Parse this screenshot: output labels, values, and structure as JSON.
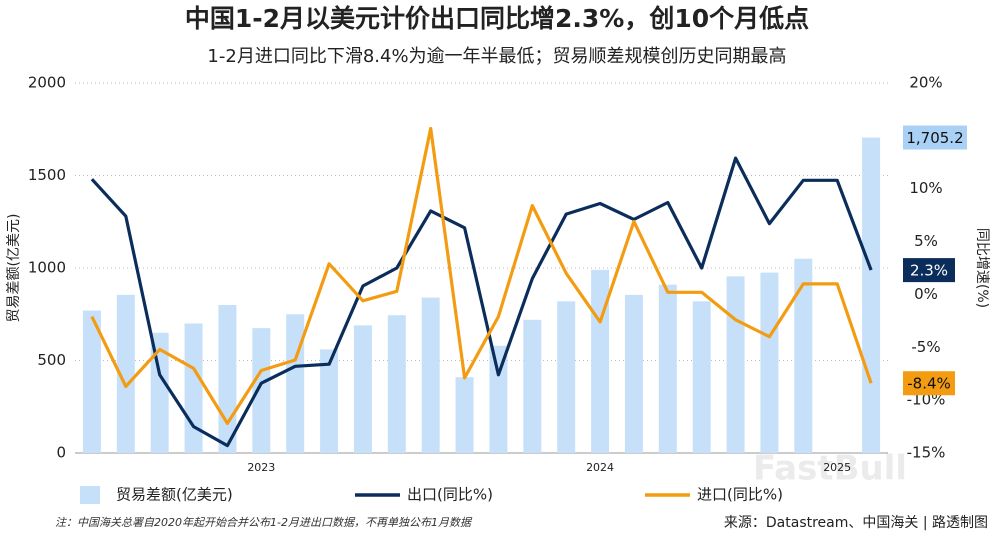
{
  "chart_data": {
    "type": "bar-line",
    "title": "中国1-2月以美元计价出口同比增2.3%，创10个月低点",
    "subtitle": "1-2月进口同比下滑8.4%为逾一年半最低；贸易顺差规模创历史同期最高",
    "y_label": "贸易差额(亿美元)",
    "y2_label": "同比增速(%)",
    "categories": [
      null,
      null,
      null,
      null,
      null,
      "2023",
      null,
      null,
      null,
      null,
      null,
      null,
      null,
      null,
      null,
      "2024",
      null,
      null,
      null,
      null,
      null,
      null,
      "2025",
      null
    ],
    "ylim": [
      0,
      2000
    ],
    "yticks": [
      0,
      500,
      1000,
      1500,
      2000
    ],
    "y2lim": [
      -15,
      20
    ],
    "y2ticks": [
      {
        "value": -15,
        "label": "-15%"
      },
      {
        "value": -10,
        "label": "-10%"
      },
      {
        "value": -5,
        "label": "-5%"
      },
      {
        "value": 0,
        "label": "0%"
      },
      {
        "value": 5,
        "label": "5%"
      },
      {
        "value": 10,
        "label": "10%"
      },
      {
        "value": 15,
        "label": "15%"
      },
      {
        "value": 20,
        "label": "20%"
      }
    ],
    "grid": true,
    "legend": "bottom",
    "series": [
      {
        "name": "贸易差额(亿美元)",
        "kind": "bar",
        "color": "#c6e0fa",
        "values": [
          770,
          855,
          650,
          700,
          800,
          675,
          750,
          560,
          690,
          745,
          840,
          410,
          580,
          720,
          820,
          990,
          855,
          910,
          820,
          955,
          975,
          1050,
          null,
          1705.2
        ],
        "value_labels": [
          null,
          null,
          null,
          null,
          null,
          null,
          null,
          null,
          null,
          null,
          null,
          null,
          null,
          null,
          null,
          null,
          null,
          null,
          null,
          null,
          null,
          null,
          null,
          "1,705.2"
        ]
      },
      {
        "name": "出口(同比%)",
        "kind": "line",
        "axis": "y2",
        "color": "#0b2d5b",
        "values": [
          10.9,
          7.4,
          -7.6,
          -12.5,
          -14.3,
          -8.4,
          -6.8,
          -6.6,
          0.8,
          2.5,
          7.9,
          6.3,
          -7.6,
          1.5,
          7.6,
          8.6,
          7.1,
          8.7,
          2.5,
          12.9,
          6.7,
          10.8,
          10.8,
          2.3
        ],
        "value_labels": [
          null,
          null,
          null,
          null,
          null,
          null,
          null,
          null,
          null,
          null,
          null,
          null,
          null,
          null,
          null,
          null,
          null,
          null,
          null,
          null,
          null,
          null,
          null,
          "2.3%"
        ]
      },
      {
        "name": "进口(同比%)",
        "kind": "line",
        "axis": "y2",
        "color": "#f39c12",
        "values": [
          -2.1,
          -8.7,
          -5.2,
          -7.0,
          -12.2,
          -7.2,
          -6.2,
          2.9,
          -0.6,
          0.3,
          15.7,
          -7.9,
          -2.1,
          8.4,
          2.0,
          -2.6,
          6.9,
          0.2,
          0.2,
          -2.4,
          -4.0,
          1.0,
          1.0,
          -8.4
        ],
        "value_labels": [
          null,
          null,
          null,
          null,
          null,
          null,
          null,
          null,
          null,
          null,
          null,
          null,
          null,
          null,
          null,
          null,
          null,
          null,
          null,
          null,
          null,
          null,
          null,
          "-8.4%"
        ]
      }
    ],
    "footnote": "注：中国海关总署自2020年起开始合并公布1-2月进出口数据，不再单独公布1月数据",
    "source": "来源：Datastream、中国海关 | 路透制图",
    "watermark": "FastBull"
  }
}
